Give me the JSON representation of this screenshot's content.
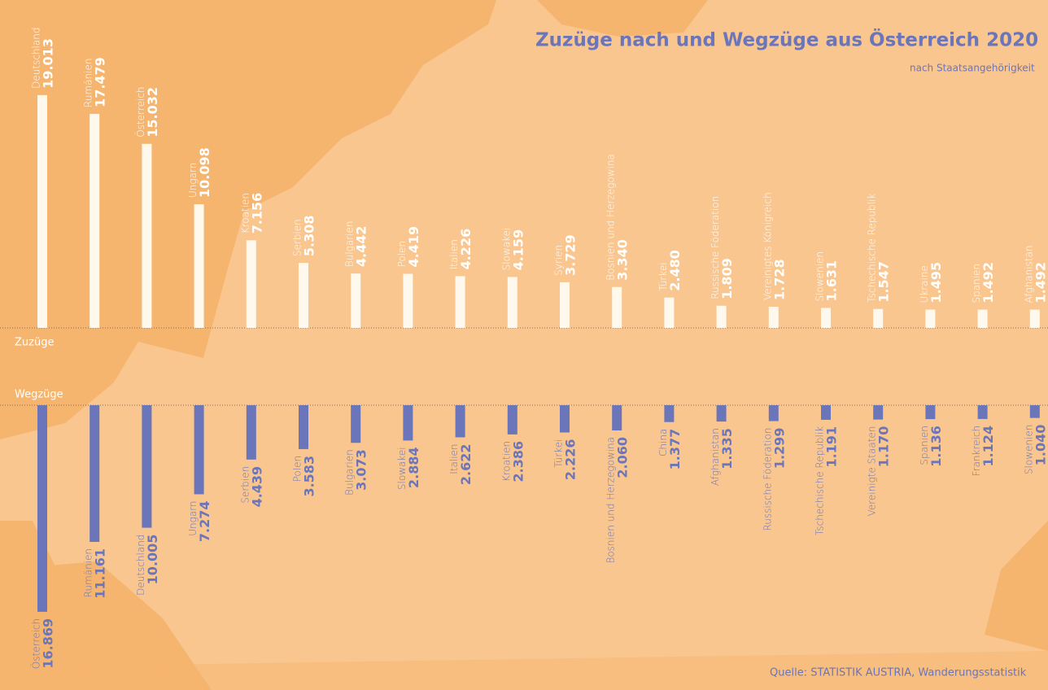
{
  "title": "Zuzüge nach und Wegzüge aus Österreich 2020",
  "subtitle": "nach Staatsangehörigkeit",
  "source": "Quelle: STATISTIK AUSTRIA, Wanderungsstatistik",
  "chart_data": [
    {
      "type": "bar",
      "title": "Zuzüge",
      "color": "#fff8ec",
      "label_color": "#ffffff",
      "categories": [
        "Deutschland",
        "Rumänien",
        "Österreich",
        "Ungarn",
        "Kroatien",
        "Serbien",
        "Bulgarien",
        "Polen",
        "Italien",
        "Slowakei",
        "Syrien",
        "Bosnien und Herzegowina",
        "Türkei",
        "Russische Föderation",
        "Vereinigtes Königreich",
        "Slowenien",
        "Tschechische Republik",
        "Ukraine",
        "Spanien",
        "Afghanistan"
      ],
      "values": [
        19013,
        17479,
        15032,
        10098,
        7156,
        5308,
        4442,
        4419,
        4226,
        4159,
        3729,
        3340,
        2480,
        1809,
        1728,
        1631,
        1547,
        1495,
        1492,
        1492
      ],
      "value_labels": [
        "19.013",
        "17.479",
        "15.032",
        "10.098",
        "7.156",
        "5.308",
        "4.442",
        "4.419",
        "4.226",
        "4.159",
        "3.729",
        "3.340",
        "2.480",
        "1.809",
        "1.728",
        "1.631",
        "1.547",
        "1.495",
        "1.492",
        "1.492"
      ]
    },
    {
      "type": "bar",
      "title": "Wegzüge",
      "color": "#6b75b9",
      "label_color": "#6b75b9",
      "categories": [
        "Österreich",
        "Rumänien",
        "Deutschland",
        "Ungarn",
        "Serbien",
        "Polen",
        "Bulgarien",
        "Slowakei",
        "Italien",
        "Kroatien",
        "Türkei",
        "Bosnien und Herzegowina",
        "China",
        "Afghanistan",
        "Russische Föderation",
        "Tschechische Republik",
        "Vereinigte Staaten",
        "Spanien",
        "Frankreich",
        "Slowenien"
      ],
      "values": [
        16869,
        11161,
        10005,
        7274,
        4439,
        3583,
        3073,
        2884,
        2622,
        2386,
        2226,
        2060,
        1377,
        1335,
        1299,
        1191,
        1170,
        1136,
        1124,
        1040
      ],
      "value_labels": [
        "16.869",
        "11.161",
        "10.005",
        "7.274",
        "4.439",
        "3.583",
        "3.073",
        "2.884",
        "2.622",
        "2.386",
        "2.226",
        "2.060",
        "1.377",
        "1.335",
        "1.299",
        "1.191",
        "1.170",
        "1.136",
        "1.124",
        "1.040"
      ]
    }
  ]
}
